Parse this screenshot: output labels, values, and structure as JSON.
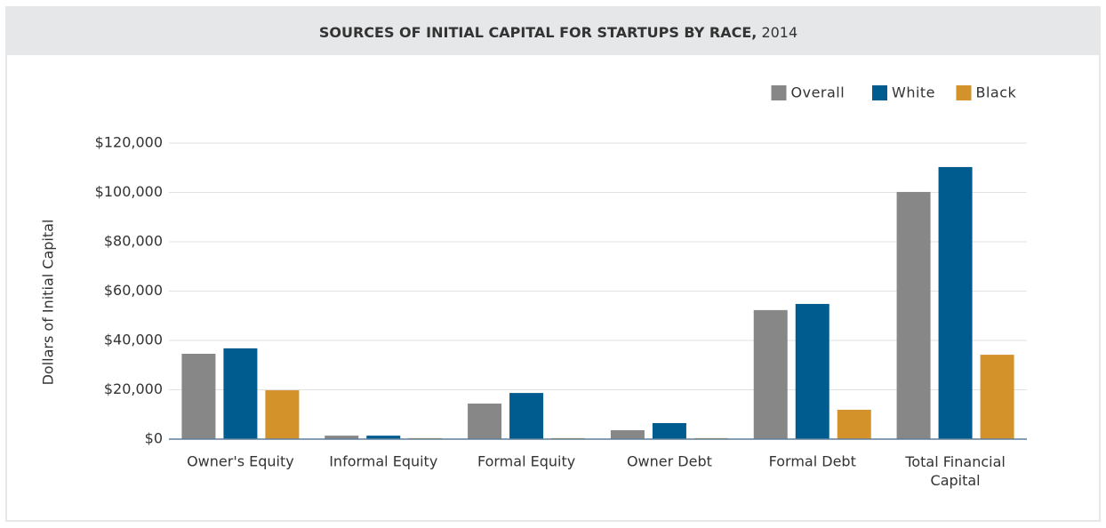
{
  "chart_data": {
    "type": "bar",
    "title": "SOURCES OF INITIAL CAPITAL FOR STARTUPS BY RACE,",
    "subtitle": "2014",
    "y_label": "Dollars of Initial Capital",
    "categories": [
      "Owner's Equity",
      "Informal Equity",
      "Formal Equity",
      "Owner Debt",
      "Formal Debt",
      "Total Financial Capital"
    ],
    "series": [
      {
        "name": "Overall",
        "color": "#878787",
        "values": [
          34600,
          1400,
          14400,
          3600,
          52300,
          100200
        ]
      },
      {
        "name": "White",
        "color": "#005b8f",
        "values": [
          36800,
          1400,
          18700,
          6500,
          54800,
          110300
        ]
      },
      {
        "name": "Black",
        "color": "#d4922b",
        "values": [
          19800,
          400,
          400,
          400,
          11900,
          34200
        ]
      }
    ],
    "ylim": [
      0,
      120000
    ],
    "yticks": [
      {
        "value": 0,
        "label": "$0"
      },
      {
        "value": 20000,
        "label": "$20,000"
      },
      {
        "value": 40000,
        "label": "$40,000"
      },
      {
        "value": 60000,
        "label": "$60,000"
      },
      {
        "value": 80000,
        "label": "$80,000"
      },
      {
        "value": 100000,
        "label": "$100,000"
      },
      {
        "value": 120000,
        "label": "$120,000"
      }
    ],
    "grid": true,
    "legend": "top-right"
  }
}
